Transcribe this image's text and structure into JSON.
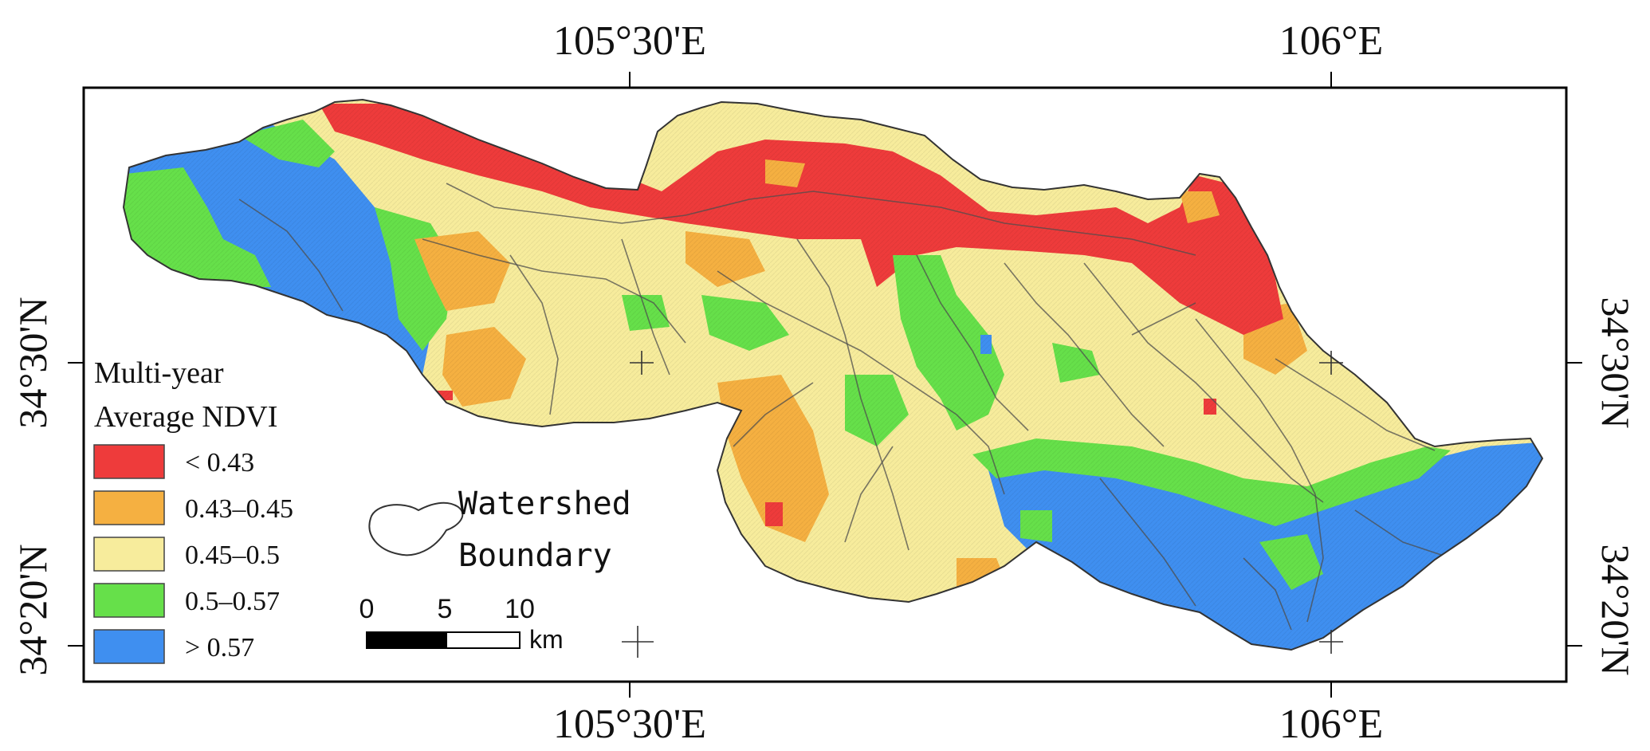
{
  "axes": {
    "top": [
      "105°30'E",
      "106°E"
    ],
    "bottom": [
      "105°30'E",
      "106°E"
    ],
    "left": [
      "34°30'N",
      "34°20'N"
    ],
    "right": [
      "34°30'N",
      "34°20'N"
    ]
  },
  "legend": {
    "title_line1": "Multi-year",
    "title_line2": "Average NDVI",
    "classes": [
      {
        "label": "< 0.43",
        "color": "#ee3b3b"
      },
      {
        "label": "0.43–0.45",
        "color": "#f5b041"
      },
      {
        "label": "0.45–0.5",
        "color": "#f7ec9c"
      },
      {
        "label": "0.5–0.57",
        "color": "#66e04a"
      },
      {
        "label": "> 0.57",
        "color": "#3f8ff0"
      }
    ]
  },
  "boundary_legend": {
    "line1": "Watershed",
    "line2": "Boundary"
  },
  "scale_bar": {
    "ticks": [
      "0",
      "5",
      "10"
    ],
    "unit": "km"
  }
}
